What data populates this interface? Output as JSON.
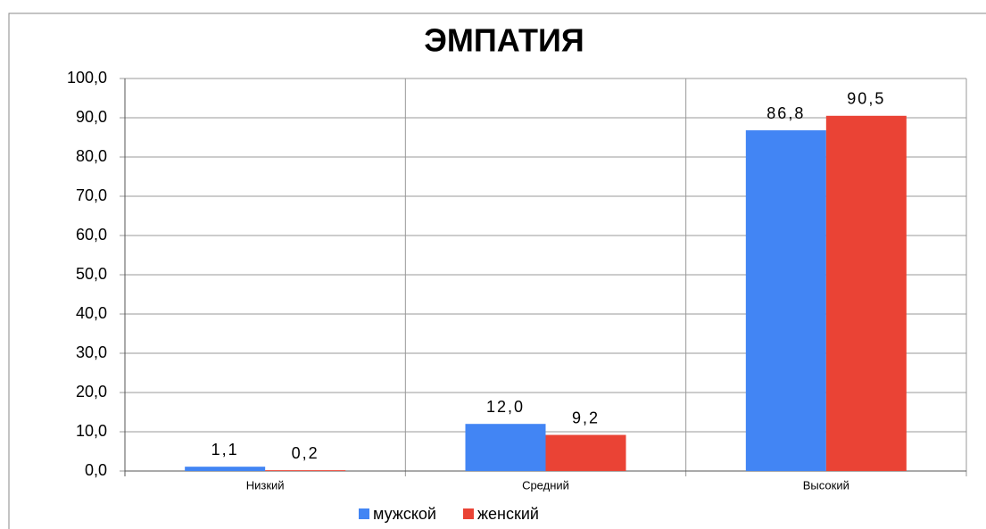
{
  "chart_data": {
    "type": "bar",
    "title": "ЭМПАТИЯ",
    "categories": [
      "Низкий",
      "Средний",
      "Высокий"
    ],
    "series": [
      {
        "name": "мужской",
        "color": "#4285f4",
        "values": [
          1.1,
          12.0,
          86.8
        ],
        "value_labels": [
          "1,1",
          "12,0",
          "86,8"
        ]
      },
      {
        "name": "женский",
        "color": "#ea4335",
        "values": [
          0.2,
          9.2,
          90.5
        ],
        "value_labels": [
          "0,2",
          "9,2",
          "90,5"
        ]
      }
    ],
    "ylim": [
      0,
      100
    ],
    "yticks": [
      {
        "value": 0,
        "label": "0,0"
      },
      {
        "value": 10,
        "label": "10,0"
      },
      {
        "value": 20,
        "label": "20,0"
      },
      {
        "value": 30,
        "label": "30,0"
      },
      {
        "value": 40,
        "label": "40,0"
      },
      {
        "value": 50,
        "label": "50,0"
      },
      {
        "value": 60,
        "label": "60,0"
      },
      {
        "value": 70,
        "label": "70,0"
      },
      {
        "value": 80,
        "label": "80,0"
      },
      {
        "value": 90,
        "label": "90,0"
      },
      {
        "value": 100,
        "label": "100,0"
      }
    ],
    "grid": true,
    "legend": "bottom"
  }
}
